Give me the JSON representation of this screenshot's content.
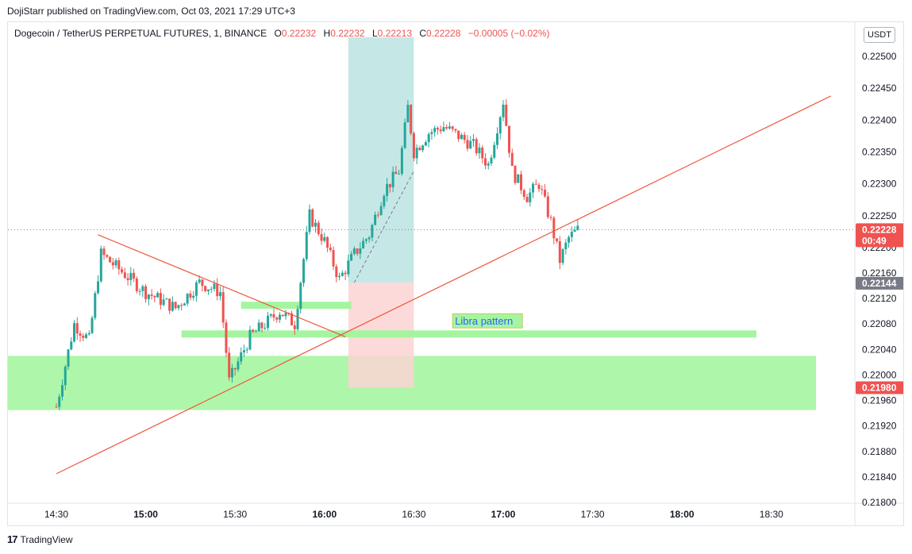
{
  "header": {
    "publisher_line": "DojiStarr published on TradingView.com, Oct 03, 2021 17:29 UTC+3"
  },
  "legend": {
    "symbol": "Dogecoin / TetherUS PERPETUAL FUTURES, 1, BINANCE",
    "open_label": "O",
    "open": "0.22232",
    "high_label": "H",
    "high": "0.22232",
    "low_label": "L",
    "low": "0.22213",
    "close_label": "C",
    "close": "0.22228",
    "change": "−0.00005 (−0.02%)"
  },
  "currency_badge": "USDT",
  "footer": {
    "logo_glyph": "17",
    "brand": "TradingView"
  },
  "colors": {
    "up": "#26a69a",
    "down": "#ef5350",
    "trendline": "#f0553b",
    "zone": "#a5f5a0",
    "target": "#c5e8e6",
    "stop": "#fcd4d3",
    "last_price_bg": "#ef5350",
    "marker_bg": "#787b86"
  },
  "chart_data": {
    "type": "candlestick",
    "symbol": "Dogecoin / TetherUS PERPETUAL FUTURES",
    "interval": "1",
    "exchange": "BINANCE",
    "ylim": [
      0.218,
      0.2253
    ],
    "y_ticks": [
      "0.22500",
      "0.22450",
      "0.22400",
      "0.22350",
      "0.22300",
      "0.22250",
      "0.22200",
      "0.22160",
      "0.22120",
      "0.22080",
      "0.22040",
      "0.22000",
      "0.21960",
      "0.21920",
      "0.21880",
      "0.21840",
      "0.21800"
    ],
    "x_ticks": [
      {
        "label": "14:30",
        "bold": false
      },
      {
        "label": "15:00",
        "bold": true
      },
      {
        "label": "15:30",
        "bold": false
      },
      {
        "label": "16:00",
        "bold": true
      },
      {
        "label": "16:30",
        "bold": false
      },
      {
        "label": "17:00",
        "bold": true
      },
      {
        "label": "17:30",
        "bold": false
      },
      {
        "label": "18:00",
        "bold": true
      },
      {
        "label": "18:30",
        "bold": false
      }
    ],
    "time_range": [
      "14:30",
      "17:25"
    ],
    "price_path": [
      {
        "t": "14:30",
        "p": 0.2195
      },
      {
        "t": "14:36",
        "p": 0.2208
      },
      {
        "t": "14:41",
        "p": 0.22055
      },
      {
        "t": "14:45",
        "p": 0.2219
      },
      {
        "t": "14:50",
        "p": 0.2217
      },
      {
        "t": "15:00",
        "p": 0.2213
      },
      {
        "t": "15:10",
        "p": 0.22105
      },
      {
        "t": "15:18",
        "p": 0.22145
      },
      {
        "t": "15:25",
        "p": 0.2213
      },
      {
        "t": "15:28",
        "p": 0.2199
      },
      {
        "t": "15:35",
        "p": 0.2206
      },
      {
        "t": "15:45",
        "p": 0.221
      },
      {
        "t": "15:50",
        "p": 0.2208
      },
      {
        "t": "15:55",
        "p": 0.2225
      },
      {
        "t": "16:00",
        "p": 0.2221
      },
      {
        "t": "16:05",
        "p": 0.2215
      },
      {
        "t": "16:10",
        "p": 0.2219
      },
      {
        "t": "16:15",
        "p": 0.2222
      },
      {
        "t": "16:20",
        "p": 0.2229
      },
      {
        "t": "16:25",
        "p": 0.2232
      },
      {
        "t": "16:28",
        "p": 0.2242
      },
      {
        "t": "16:30",
        "p": 0.2235
      },
      {
        "t": "16:35",
        "p": 0.2238
      },
      {
        "t": "16:40",
        "p": 0.2239
      },
      {
        "t": "16:50",
        "p": 0.2236
      },
      {
        "t": "16:55",
        "p": 0.2233
      },
      {
        "t": "17:00",
        "p": 0.2243
      },
      {
        "t": "17:03",
        "p": 0.2232
      },
      {
        "t": "17:08",
        "p": 0.2228
      },
      {
        "t": "17:12",
        "p": 0.223
      },
      {
        "t": "17:16",
        "p": 0.2224
      },
      {
        "t": "17:19",
        "p": 0.2218
      },
      {
        "t": "17:22",
        "p": 0.22215
      },
      {
        "t": "17:25",
        "p": 0.22228
      }
    ],
    "last_price": "0.22228",
    "countdown": "00:49",
    "marker_price": "0.22144",
    "zone_price": "0.21980",
    "drawings": {
      "annotation": "Libra pattern",
      "support_zone": {
        "from_price": 0.21945,
        "to_price": 0.2203,
        "t_start": "14:30",
        "t_end": "18:45"
      },
      "long_position": {
        "t_start": "16:08",
        "t_end": "16:30",
        "entry": 0.22145,
        "target": 0.2253,
        "stop": 0.2198
      },
      "level_bars": [
        {
          "t_start": "15:32",
          "t_end": "16:09",
          "price": 0.2211
        },
        {
          "t_start": "15:12",
          "t_end": "18:25",
          "price": 0.22065
        }
      ],
      "descending_trendline": {
        "t_start": "14:44",
        "p_start": 0.2222,
        "t_end": "16:07",
        "p_end": 0.2206
      },
      "ascending_trendline": {
        "t_start": "14:30",
        "p_start": 0.21845,
        "t_end": "18:50",
        "p_end": 0.22438
      }
    }
  }
}
